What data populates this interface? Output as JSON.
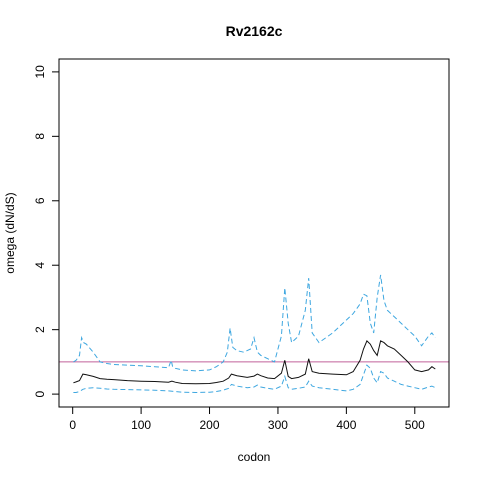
{
  "chart_data": {
    "type": "line",
    "title": "Rv2162c",
    "xlabel": "codon",
    "ylabel": "omega (dN/dS)",
    "xlim": [
      -20,
      550
    ],
    "ylim": [
      -0.4,
      10.4
    ],
    "xticks": [
      0,
      100,
      200,
      300,
      400,
      500
    ],
    "yticks": [
      0,
      2,
      4,
      6,
      8,
      10
    ],
    "grid": false,
    "legend": "none",
    "reference_line": {
      "y": 1,
      "color": "#c0609a"
    },
    "series": [
      {
        "role": "estimate",
        "color": "#111111",
        "dash": "solid",
        "x": [
          1,
          5,
          10,
          15,
          20,
          30,
          40,
          50,
          60,
          80,
          100,
          120,
          140,
          145,
          150,
          160,
          180,
          200,
          210,
          220,
          228,
          232,
          240,
          255,
          265,
          270,
          275,
          285,
          295,
          305,
          310,
          315,
          320,
          330,
          340,
          345,
          350,
          360,
          380,
          400,
          410,
          420,
          425,
          430,
          435,
          440,
          445,
          450,
          455,
          460,
          470,
          480,
          490,
          500,
          510,
          520,
          525,
          530
        ],
        "y": [
          0.35,
          0.38,
          0.42,
          0.62,
          0.6,
          0.55,
          0.48,
          0.46,
          0.45,
          0.42,
          0.4,
          0.39,
          0.37,
          0.4,
          0.37,
          0.33,
          0.32,
          0.33,
          0.36,
          0.4,
          0.5,
          0.62,
          0.57,
          0.52,
          0.56,
          0.62,
          0.57,
          0.5,
          0.48,
          0.65,
          1.05,
          0.55,
          0.48,
          0.52,
          0.62,
          1.1,
          0.7,
          0.65,
          0.62,
          0.6,
          0.7,
          1.05,
          1.4,
          1.65,
          1.55,
          1.35,
          1.2,
          1.65,
          1.6,
          1.5,
          1.4,
          1.2,
          1.0,
          0.75,
          0.7,
          0.75,
          0.85,
          0.78
        ]
      },
      {
        "role": "upper bound",
        "color": "#3ea7e0",
        "dash": "dashed",
        "x": [
          1,
          5,
          10,
          13,
          16,
          20,
          30,
          40,
          50,
          60,
          80,
          100,
          120,
          140,
          144,
          146,
          150,
          160,
          180,
          200,
          210,
          220,
          226,
          230,
          234,
          240,
          250,
          260,
          265,
          270,
          275,
          285,
          295,
          305,
          310,
          315,
          320,
          330,
          340,
          345,
          350,
          360,
          380,
          400,
          410,
          420,
          425,
          430,
          435,
          440,
          445,
          450,
          455,
          460,
          470,
          480,
          490,
          500,
          510,
          520,
          525,
          530
        ],
        "y": [
          1.0,
          1.05,
          1.2,
          1.75,
          1.6,
          1.55,
          1.3,
          1.0,
          0.95,
          0.92,
          0.9,
          0.88,
          0.85,
          0.82,
          1.05,
          0.85,
          0.8,
          0.75,
          0.72,
          0.75,
          0.85,
          1.0,
          1.3,
          2.05,
          1.45,
          1.35,
          1.3,
          1.4,
          1.75,
          1.3,
          1.2,
          1.1,
          1.0,
          1.8,
          3.3,
          2.2,
          1.6,
          1.8,
          2.6,
          3.6,
          1.9,
          1.6,
          1.9,
          2.3,
          2.5,
          2.8,
          3.1,
          3.05,
          2.2,
          1.9,
          3.0,
          3.7,
          2.9,
          2.6,
          2.4,
          2.2,
          2.0,
          1.8,
          1.5,
          1.8,
          1.9,
          1.75
        ]
      },
      {
        "role": "lower bound",
        "color": "#3ea7e0",
        "dash": "dashed",
        "x": [
          1,
          5,
          10,
          15,
          20,
          30,
          40,
          50,
          60,
          80,
          100,
          120,
          140,
          150,
          160,
          180,
          200,
          210,
          220,
          228,
          232,
          240,
          255,
          265,
          270,
          275,
          285,
          295,
          305,
          310,
          315,
          320,
          330,
          340,
          345,
          350,
          360,
          380,
          400,
          410,
          420,
          425,
          430,
          435,
          440,
          445,
          450,
          455,
          460,
          470,
          480,
          490,
          500,
          510,
          520,
          525,
          530
        ],
        "y": [
          0.05,
          0.05,
          0.08,
          0.15,
          0.18,
          0.2,
          0.18,
          0.16,
          0.15,
          0.14,
          0.13,
          0.12,
          0.1,
          0.08,
          0.06,
          0.05,
          0.06,
          0.08,
          0.12,
          0.18,
          0.3,
          0.25,
          0.2,
          0.22,
          0.28,
          0.22,
          0.18,
          0.15,
          0.25,
          0.55,
          0.2,
          0.15,
          0.18,
          0.22,
          0.4,
          0.25,
          0.2,
          0.15,
          0.1,
          0.15,
          0.3,
          0.6,
          0.9,
          0.8,
          0.5,
          0.35,
          0.7,
          0.65,
          0.5,
          0.4,
          0.3,
          0.25,
          0.2,
          0.15,
          0.22,
          0.25,
          0.2
        ]
      }
    ]
  }
}
